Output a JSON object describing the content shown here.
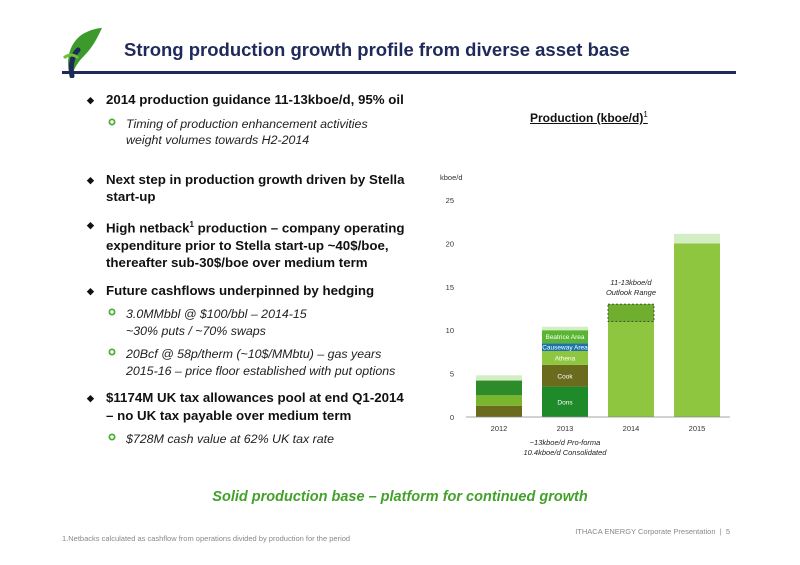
{
  "header": {
    "title": "Strong production growth profile from diverse asset base"
  },
  "bullets": [
    {
      "text": "2014 production guidance 11-13kboe/d, 95% oil",
      "subs": [
        "Timing of production enhancement activities",
        "weight volumes towards H2-2014"
      ]
    },
    {
      "line1": "Next step in production growth driven by Stella",
      "line2": "start-up"
    },
    {
      "part1": "High netback",
      "sup": "1",
      "part2": " production – company operating",
      "line2": "expenditure prior to Stella start-up ~40$/boe,",
      "line3": "thereafter sub-30$/boe over medium term"
    },
    {
      "text": "Future cashflows underpinned by hedging",
      "sub1": [
        "3.0MMbbl @ $100/bbl – 2014-15",
        "~30% puts / ~70% swaps"
      ],
      "sub2": [
        "20Bcf @ 58p/therm (~10$/MMbtu) – gas years",
        "2015-16 – price floor established with put options"
      ]
    },
    {
      "line1": "$1174M UK tax allowances pool at end Q1-2014",
      "line2": "– no UK tax payable over medium term",
      "sub": "$728M cash value at 62% UK tax rate"
    }
  ],
  "chart_data": {
    "type": "bar",
    "stacked": true,
    "title": "Production (kboe/d)",
    "title_sup": "1",
    "ylabel": "kboe/d",
    "ylim": [
      0,
      25
    ],
    "yticks": [
      0,
      5,
      10,
      15,
      20,
      25
    ],
    "categories": [
      "2012",
      "2013",
      "2014",
      "2015"
    ],
    "grid": false,
    "segments": [
      {
        "category": "2012",
        "from": 0,
        "to": 1.3,
        "color": "#6b6b1e",
        "label": ""
      },
      {
        "category": "2012",
        "from": 1.3,
        "to": 2.5,
        "color": "#7ab52e",
        "label": ""
      },
      {
        "category": "2012",
        "from": 2.5,
        "to": 4.2,
        "color": "#2e8b2a",
        "label": ""
      },
      {
        "category": "2012",
        "from": 4.2,
        "to": 4.8,
        "color": "#d3eec5",
        "label": ""
      },
      {
        "category": "2013",
        "from": 0,
        "to": 3.5,
        "color": "#1e8a2a",
        "label": "Dons"
      },
      {
        "category": "2013",
        "from": 3.5,
        "to": 6.0,
        "color": "#6b6b1e",
        "label": "Cook"
      },
      {
        "category": "2013",
        "from": 6.0,
        "to": 7.6,
        "color": "#8ec63f",
        "label": "Athena"
      },
      {
        "category": "2013",
        "from": 7.6,
        "to": 8.5,
        "color": "#1b73a8",
        "label": "Causeway Area"
      },
      {
        "category": "2013",
        "from": 8.5,
        "to": 10.0,
        "color": "#5ab533",
        "label": "Beatrice Area"
      },
      {
        "category": "2013",
        "from": 10.0,
        "to": 10.4,
        "color": "#d3eec5",
        "label": ""
      },
      {
        "category": "2014",
        "from": 0,
        "to": 13,
        "color": "#8ec63f",
        "label": ""
      },
      {
        "category": "2015",
        "from": 0,
        "to": 20,
        "color": "#8ec63f",
        "label": ""
      },
      {
        "category": "2015",
        "from": 20,
        "to": 21.1,
        "color": "#d3eec5",
        "label": ""
      }
    ],
    "outlook_range": {
      "category": "2014",
      "low": 11,
      "high": 13,
      "label_lines": [
        "11-13kboe/d",
        "Outlook Range"
      ]
    },
    "annotation_2013": [
      "~13kboe/d Pro-forma",
      "10.4kboe/d Consolidated"
    ]
  },
  "tagline": "Solid production base – platform for continued growth",
  "footnote": "1.Netbacks calculated as cashflow from operations divided by production for the period",
  "footer": {
    "text": "ITHACA ENERGY Corporate Presentation",
    "sep": "|",
    "page": "5"
  },
  "colors": {
    "title_navy": "#1f2a5a",
    "accent_green": "#43a12b",
    "bar_green": "#8ec63f"
  }
}
